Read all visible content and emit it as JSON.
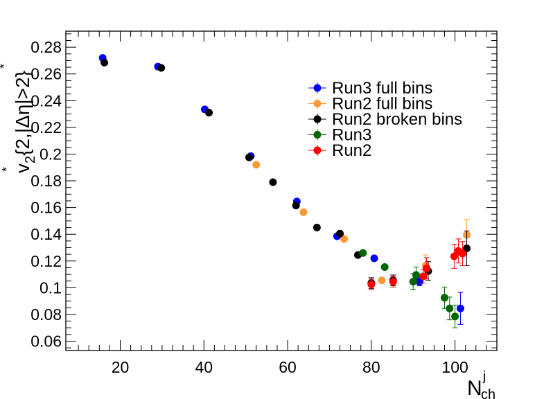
{
  "chart_data": {
    "type": "scatter",
    "title": "",
    "xlabel": "N",
    "xlabel_sup": "j",
    "xlabel_sub": "ch",
    "ylabel": "v",
    "ylabel_sub": "2",
    "ylabel_sup": "*",
    "ylabel_rest": "{2,|Δη",
    "ylabel_rest_sup": "*",
    "ylabel_tail": "|>2}",
    "xlim": [
      7,
      110
    ],
    "ylim": [
      0.053,
      0.292
    ],
    "x_ticks": [
      20,
      40,
      60,
      80,
      100
    ],
    "y_ticks": [
      0.06,
      0.08,
      0.1,
      0.12,
      0.14,
      0.16,
      0.18,
      0.2,
      0.22,
      0.24,
      0.26,
      0.28
    ],
    "x_tick_labels": [
      "20",
      "40",
      "60",
      "80",
      "100"
    ],
    "y_tick_labels": [
      "0.06",
      "0.08",
      "0.1",
      "0.12",
      "0.14",
      "0.16",
      "0.18",
      "0.2",
      "0.22",
      "0.24",
      "0.26",
      "0.28"
    ],
    "grid": false,
    "legend_position": "top-right",
    "series": [
      {
        "name": "Run3 full bins",
        "color": "#0000ff",
        "points": [
          {
            "x": 15.8,
            "y": 0.272,
            "err": 0.0
          },
          {
            "x": 29.0,
            "y": 0.2655,
            "err": 0.0
          },
          {
            "x": 40.2,
            "y": 0.2335,
            "err": 0.0
          },
          {
            "x": 51.2,
            "y": 0.1985,
            "err": 0.0
          },
          {
            "x": 62.2,
            "y": 0.1645,
            "err": 0.0
          },
          {
            "x": 71.8,
            "y": 0.1385,
            "err": 0.0
          },
          {
            "x": 80.7,
            "y": 0.122,
            "err": 0.0
          },
          {
            "x": 91.5,
            "y": 0.1045,
            "err": 0.003
          },
          {
            "x": 101.3,
            "y": 0.0845,
            "err": 0.012
          }
        ]
      },
      {
        "name": "Run2 full bins",
        "color": "#ff9933",
        "points": [
          {
            "x": 52.5,
            "y": 0.192,
            "err": 0.0
          },
          {
            "x": 63.8,
            "y": 0.1565,
            "err": 0.0
          },
          {
            "x": 73.5,
            "y": 0.1365,
            "err": 0.0
          },
          {
            "x": 82.5,
            "y": 0.1055,
            "err": 0.0
          },
          {
            "x": 93.0,
            "y": 0.1165,
            "err": 0.008
          },
          {
            "x": 102.8,
            "y": 0.1395,
            "err": 0.0115
          }
        ]
      },
      {
        "name": "Run2 broken bins",
        "color": "#000000",
        "points": [
          {
            "x": 16.2,
            "y": 0.2685,
            "err": 0.0
          },
          {
            "x": 29.8,
            "y": 0.2645,
            "err": 0.0
          },
          {
            "x": 41.2,
            "y": 0.231,
            "err": 0.0
          },
          {
            "x": 50.8,
            "y": 0.1975,
            "err": 0.0
          },
          {
            "x": 56.5,
            "y": 0.179,
            "err": 0.0
          },
          {
            "x": 62.0,
            "y": 0.1615,
            "err": 0.0
          },
          {
            "x": 67.0,
            "y": 0.145,
            "err": 0.0
          },
          {
            "x": 72.5,
            "y": 0.1405,
            "err": 0.0
          },
          {
            "x": 76.8,
            "y": 0.1245,
            "err": 0.0
          },
          {
            "x": 80.0,
            "y": 0.1035,
            "err": 0.004
          },
          {
            "x": 85.2,
            "y": 0.1055,
            "err": 0.004
          },
          {
            "x": 93.6,
            "y": 0.1125,
            "err": 0.007
          },
          {
            "x": 102.8,
            "y": 0.1295,
            "err": 0.013
          }
        ]
      },
      {
        "name": "Run3",
        "color": "#006600",
        "points": [
          {
            "x": 78.0,
            "y": 0.126,
            "err": 0.0
          },
          {
            "x": 83.2,
            "y": 0.1155,
            "err": 0.0
          },
          {
            "x": 90.0,
            "y": 0.1045,
            "err": 0.006
          },
          {
            "x": 90.7,
            "y": 0.1095,
            "err": 0.006
          },
          {
            "x": 97.5,
            "y": 0.0925,
            "err": 0.008
          },
          {
            "x": 98.7,
            "y": 0.0845,
            "err": 0.0085
          },
          {
            "x": 100.0,
            "y": 0.0785,
            "err": 0.0085
          }
        ]
      },
      {
        "name": "Run2",
        "color": "#ff0000",
        "points": [
          {
            "x": 80.0,
            "y": 0.1025,
            "err": 0.004
          },
          {
            "x": 85.2,
            "y": 0.1045,
            "err": 0.004
          },
          {
            "x": 92.4,
            "y": 0.1085,
            "err": 0.005
          },
          {
            "x": 93.2,
            "y": 0.1145,
            "err": 0.008
          },
          {
            "x": 99.8,
            "y": 0.1235,
            "err": 0.009
          },
          {
            "x": 100.8,
            "y": 0.1275,
            "err": 0.009
          },
          {
            "x": 101.8,
            "y": 0.1255,
            "err": 0.009
          }
        ]
      }
    ]
  }
}
